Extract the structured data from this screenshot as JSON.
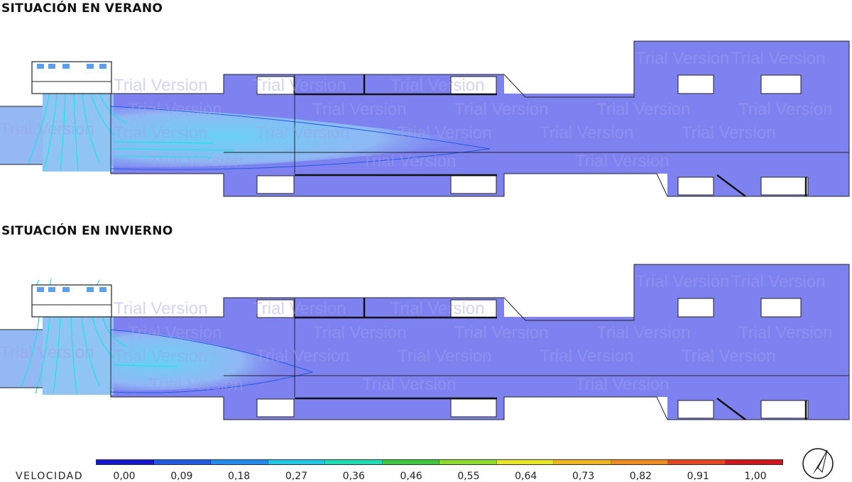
{
  "titles": {
    "summer": "SITUACIÓN EN VERANO",
    "winter": "SITUACIÓN EN INVIERNO"
  },
  "watermark": "Trial Version",
  "legend": {
    "label": "VELOCIDAD",
    "ticks": [
      "0,00",
      "0,09",
      "0,18",
      "0,27",
      "0,36",
      "0,46",
      "0,55",
      "0,64",
      "0,73",
      "0,82",
      "0,91",
      "1,00"
    ],
    "colors": [
      "#1414d2",
      "#1e5ae6",
      "#1e8cf0",
      "#1ec8e6",
      "#1edcb4",
      "#3cc83c",
      "#8cdc28",
      "#e6e628",
      "#f0b41e",
      "#f08c1e",
      "#e6461e",
      "#d2141e"
    ]
  },
  "colors": {
    "low_velocity_fill": "#7d82f0",
    "jet_core": "#6fc6f2",
    "jet_edge": "#93b4f4",
    "streamline": "#19e6e6",
    "outline": "#222222"
  },
  "compass_icon": "north-arrow-icon"
}
